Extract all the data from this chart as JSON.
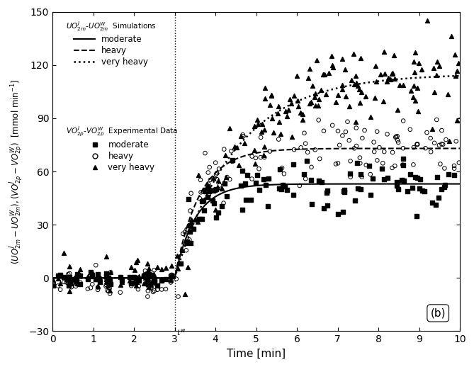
{
  "xlabel": "Time [min]",
  "xlim": [
    0,
    10
  ],
  "ylim": [
    -30,
    150
  ],
  "yticks": [
    -30,
    0,
    30,
    60,
    90,
    120,
    150
  ],
  "xticks": [
    0,
    1,
    2,
    3,
    4,
    5,
    6,
    7,
    8,
    9,
    10
  ],
  "t_work": 3.0,
  "sim_moderate_steady": 53,
  "sim_heavy_steady": 73,
  "sim_very_heavy_steady": 115,
  "sim_tau_moderate": 0.5,
  "sim_tau_heavy": 0.6,
  "sim_tau_very_heavy": 1.5,
  "background_color": "#ffffff",
  "fig_background": "#ffffff"
}
